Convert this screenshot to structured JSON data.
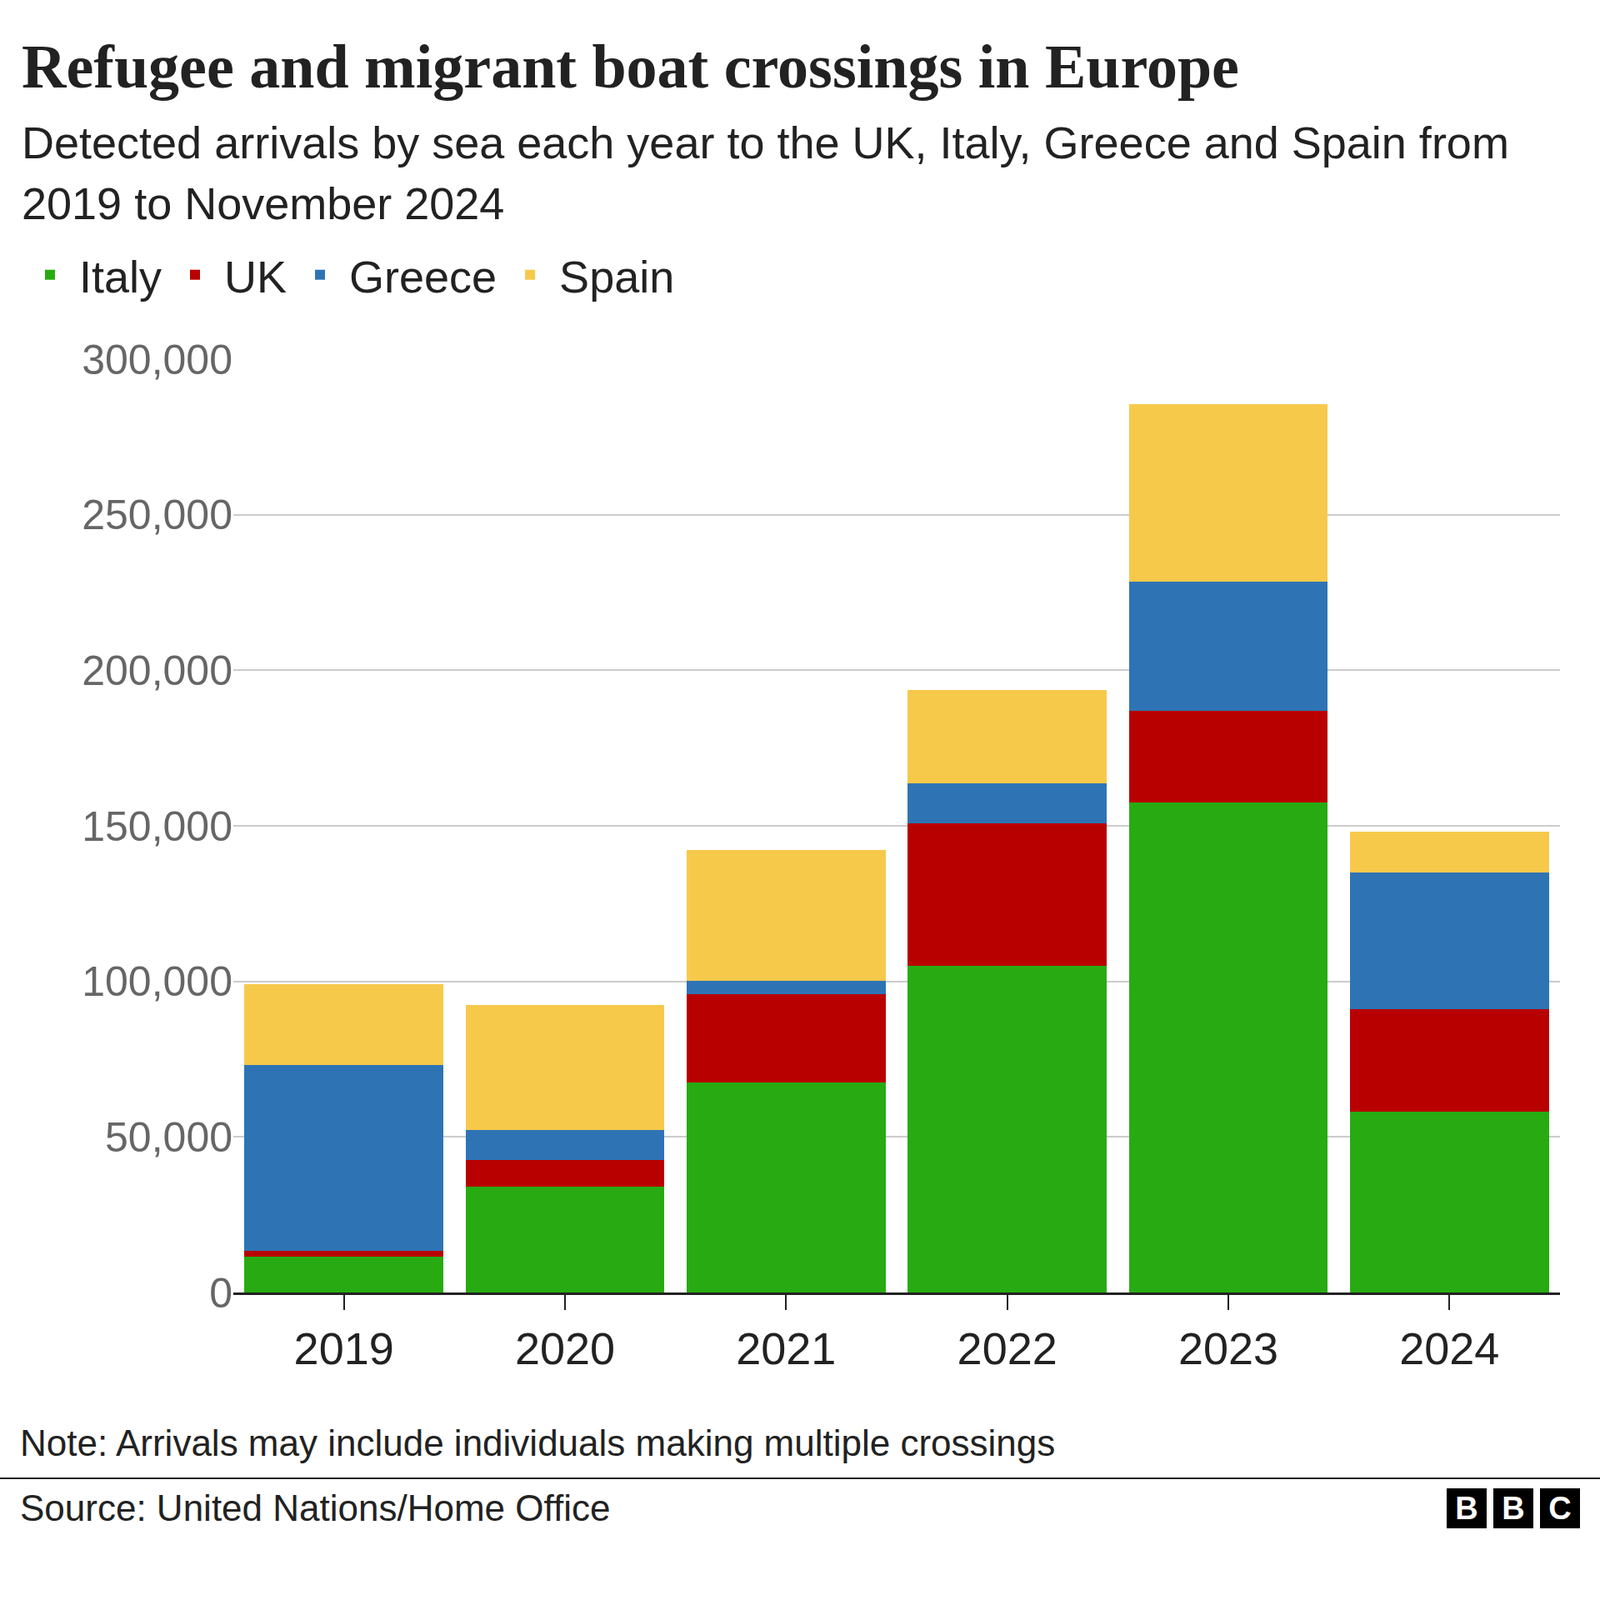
{
  "chart_data": {
    "type": "bar",
    "stacked": true,
    "title": "Refugee and migrant boat crossings in Europe",
    "subtitle": "Detected arrivals by sea each year to the UK, Italy, Greece and Spain from 2019 to November 2024",
    "note": "Note: Arrivals may include individuals making multiple crossings",
    "source": "Source: United Nations/Home Office",
    "logo": "BBC",
    "categories": [
      "2019",
      "2020",
      "2021",
      "2022",
      "2023",
      "2024"
    ],
    "series": [
      {
        "name": "Italy",
        "color": "#28ab12",
        "values": [
          11500,
          34100,
          67500,
          105100,
          157600,
          58200
        ]
      },
      {
        "name": "UK",
        "color": "#b80000",
        "values": [
          1900,
          8400,
          28500,
          45800,
          29400,
          32800
        ]
      },
      {
        "name": "Greece",
        "color": "#2e74b5",
        "values": [
          59600,
          9700,
          4200,
          12800,
          41500,
          44000
        ]
      },
      {
        "name": "Spain",
        "color": "#f7c94b",
        "values": [
          26000,
          40300,
          41900,
          30000,
          57000,
          13200
        ]
      }
    ],
    "ylim": [
      0,
      300000
    ],
    "yticks": [
      0,
      {
        "value": 50000,
        "label": "50,000"
      },
      {
        "value": 100000,
        "label": "100,000"
      },
      {
        "value": 150000,
        "label": "150,000"
      },
      {
        "value": 200000,
        "label": "200,000"
      },
      {
        "value": 250000,
        "label": "250,000"
      },
      {
        "value": 300000,
        "label": "300,000"
      }
    ],
    "grid": true,
    "legend": "top-left"
  }
}
